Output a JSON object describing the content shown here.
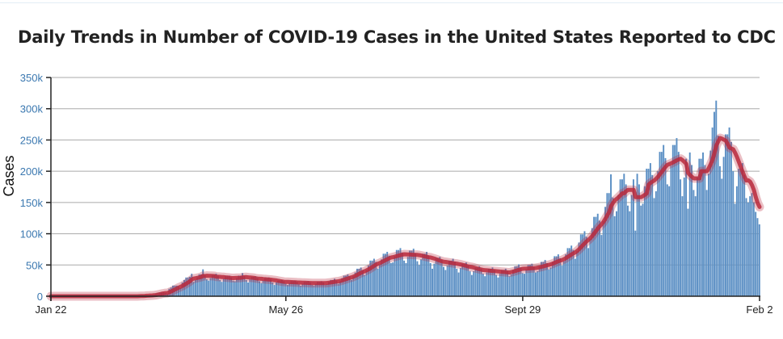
{
  "chart_data": {
    "type": "bar",
    "title": "Daily Trends in Number of COVID-19 Cases in the United States Reported to CDC",
    "ylabel": "Cases",
    "xlabel": "",
    "x_start": "Jan 22",
    "x_end": "Feb 2",
    "x_ticks": [
      {
        "label": "Jan 22",
        "day": 0
      },
      {
        "label": "May 26",
        "day": 125
      },
      {
        "label": "Sept 29",
        "day": 251
      },
      {
        "label": "Feb 2",
        "day": 377
      }
    ],
    "y_ticks": [
      {
        "label": "0",
        "value": 0
      },
      {
        "label": "50k",
        "value": 50
      },
      {
        "label": "100k",
        "value": 100
      },
      {
        "label": "150k",
        "value": 150
      },
      {
        "label": "200k",
        "value": 200
      },
      {
        "label": "250k",
        "value": 250
      },
      {
        "label": "300k",
        "value": 300
      },
      {
        "label": "350k",
        "value": 350
      }
    ],
    "ylim": [
      0,
      350
    ],
    "grid": true,
    "bar_color": "#5b8fc4",
    "trend_color": "#b8293c",
    "daily_cases_k": [
      0,
      0,
      0,
      0,
      0,
      0,
      0,
      0,
      0,
      0,
      0,
      0,
      0,
      0,
      0,
      0,
      0,
      0,
      0,
      0,
      0,
      0,
      0,
      0,
      0,
      0,
      0,
      0,
      0,
      0,
      0,
      0,
      0,
      0,
      0,
      0,
      0,
      0,
      0,
      0,
      0,
      0,
      0,
      0,
      0,
      0,
      0,
      1,
      1,
      1,
      1,
      1,
      1,
      2,
      2,
      3,
      4,
      5,
      6,
      6,
      6,
      5,
      4,
      12,
      14,
      17,
      17,
      17,
      16,
      13,
      22,
      26,
      30,
      30,
      31,
      36,
      23,
      26,
      30,
      35,
      35,
      43,
      34,
      27,
      25,
      29,
      34,
      34,
      36,
      33,
      26,
      23,
      28,
      32,
      32,
      33,
      30,
      25,
      24,
      29,
      33,
      33,
      37,
      32,
      26,
      22,
      27,
      31,
      31,
      32,
      29,
      24,
      21,
      25,
      29,
      29,
      30,
      27,
      22,
      18,
      22,
      25,
      25,
      26,
      24,
      20,
      18,
      21,
      24,
      24,
      25,
      23,
      19,
      17,
      20,
      23,
      23,
      24,
      22,
      18,
      17,
      20,
      23,
      23,
      24,
      22,
      18,
      19,
      23,
      26,
      26,
      28,
      25,
      20,
      24,
      29,
      33,
      33,
      35,
      32,
      26,
      32,
      38,
      44,
      44,
      46,
      42,
      34,
      42,
      49,
      57,
      57,
      60,
      55,
      44,
      50,
      59,
      68,
      68,
      71,
      65,
      53,
      54,
      64,
      74,
      74,
      77,
      70,
      57,
      53,
      63,
      73,
      73,
      76,
      69,
      56,
      50,
      59,
      68,
      68,
      71,
      65,
      53,
      44,
      52,
      61,
      61,
      63,
      58,
      47,
      42,
      49,
      57,
      57,
      60,
      55,
      44,
      38,
      45,
      52,
      52,
      54,
      49,
      40,
      34,
      40,
      46,
      46,
      48,
      44,
      36,
      32,
      38,
      44,
      44,
      46,
      42,
      34,
      30,
      36,
      42,
      42,
      44,
      40,
      32,
      35,
      42,
      48,
      48,
      51,
      46,
      37,
      36,
      43,
      50,
      50,
      52,
      47,
      38,
      40,
      48,
      55,
      55,
      58,
      53,
      43,
      46,
      55,
      64,
      64,
      67,
      61,
      49,
      56,
      67,
      77,
      77,
      81,
      74,
      60,
      72,
      86,
      99,
      99,
      104,
      95,
      77,
      92,
      109,
      127,
      127,
      132,
      121,
      98,
      120,
      143,
      165,
      165,
      195,
      158,
      128,
      136,
      162,
      187,
      187,
      196,
      179,
      145,
      136,
      162,
      187,
      105,
      196,
      179,
      145,
      148,
      176,
      204,
      204,
      213,
      194,
      157,
      168,
      200,
      231,
      231,
      242,
      221,
      179,
      176,
      209,
      242,
      242,
      253,
      231,
      187,
      160,
      190,
      220,
      140,
      230,
      210,
      170,
      160,
      190,
      220,
      220,
      230,
      210,
      170,
      196,
      233,
      270,
      295,
      313,
      257,
      208,
      188,
      223,
      259,
      259,
      270,
      247,
      200,
      148,
      176,
      204,
      204,
      213,
      194,
      157,
      150,
      160,
      165,
      150,
      135,
      125,
      115
    ]
  }
}
